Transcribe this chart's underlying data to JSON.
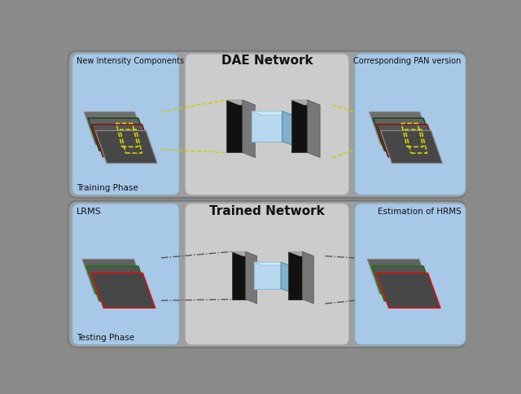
{
  "bg_color": "#8a8a8a",
  "outer_panel_fc": "#9a9a9a",
  "outer_panel_ec": "#777777",
  "blue_panel_fc": "#a8c8e8",
  "blue_panel_ec": "#8aaabb",
  "center_panel_fc": "#cccccc",
  "center_panel_ec": "#aaaaaa",
  "top_title": "DAE Network",
  "bottom_title": "Trained Network",
  "top_left_label": "New Intensity Components",
  "top_right_label": "Corresponding PAN version",
  "bottom_left_label": "LRMS",
  "bottom_right_label": "Estimation of HRMS",
  "top_phase_label": "Training Phase",
  "bottom_phase_label": "Testing Phase",
  "enc_front": "#111111",
  "enc_side": "#777777",
  "enc_top": "#aaaaaa",
  "bn_front": "#b8d8f0",
  "bn_side": "#80b0cc",
  "bn_top": "#d0e8f8"
}
